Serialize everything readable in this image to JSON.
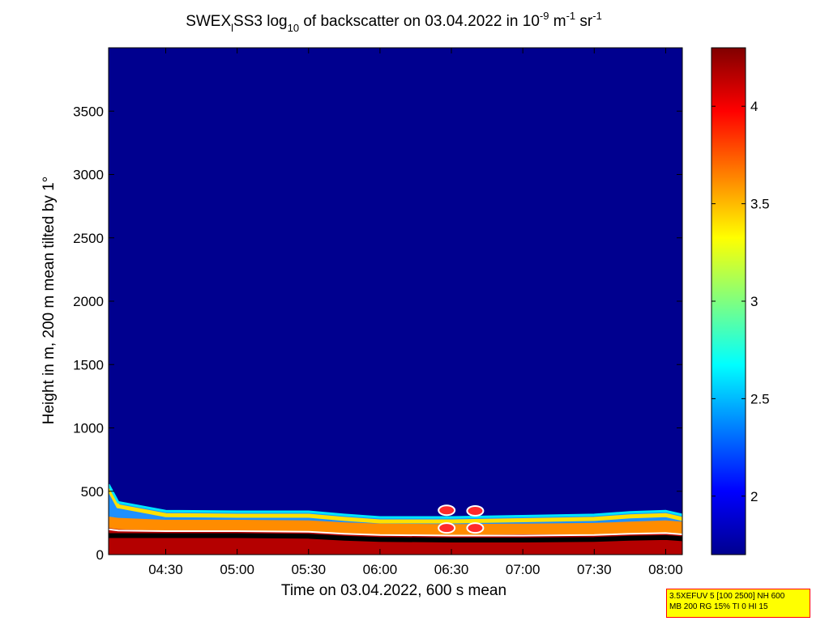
{
  "chart_data": {
    "type": "heatmap",
    "title": {
      "part1": "SWEX",
      "sub1": "l",
      "part2": "SS3 log",
      "sub2": "10",
      "part3": " of backscatter on 03.04.2022 in 10",
      "sup1": "-9",
      "part4": " m",
      "sup2": "-1",
      "part5": " sr",
      "sup3": "-1"
    },
    "xlabel": "Time on 03.04.2022, 600 s mean",
    "ylabel": "Height in m, 200 m mean tilted by 1°",
    "xlim": [
      "04:06",
      "08:07"
    ],
    "xticks": [
      "04:30",
      "05:00",
      "05:30",
      "06:00",
      "06:30",
      "07:00",
      "07:30",
      "08:00"
    ],
    "ylim": [
      0,
      4000
    ],
    "yticks": [
      0,
      500,
      1000,
      1500,
      2000,
      2500,
      3000,
      3500
    ],
    "colorbar": {
      "colormap": "jet",
      "range": [
        1.7,
        4.3
      ],
      "ticks": [
        2,
        2.5,
        3,
        3.5,
        4
      ]
    },
    "background_level": 1.7,
    "layers": {
      "time": [
        "04:06",
        "04:10",
        "04:30",
        "05:00",
        "05:30",
        "05:45",
        "06:00",
        "06:30",
        "07:00",
        "07:30",
        "07:45",
        "08:00",
        "08:07"
      ],
      "signal_top_m": [
        560,
        420,
        350,
        345,
        345,
        320,
        300,
        300,
        310,
        320,
        340,
        350,
        320
      ],
      "high_signal_top_m": [
        300,
        290,
        275,
        275,
        270,
        255,
        245,
        240,
        245,
        250,
        260,
        270,
        260
      ],
      "saturated_top_m": [
        210,
        200,
        190,
        190,
        185,
        170,
        160,
        155,
        160,
        160,
        170,
        175,
        165
      ],
      "white_contour_m": [
        200,
        190,
        185,
        185,
        180,
        165,
        155,
        150,
        150,
        155,
        165,
        170,
        160
      ],
      "black_band_m": [
        150,
        150,
        150,
        150,
        145,
        130,
        120,
        115,
        115,
        120,
        130,
        135,
        125
      ]
    },
    "cloud_marks": [
      {
        "time": "06:28",
        "height_m": 350
      },
      {
        "time": "06:28",
        "height_m": 210
      },
      {
        "time": "06:40",
        "height_m": 345
      },
      {
        "time": "06:40",
        "height_m": 210
      }
    ]
  },
  "info_box": {
    "line1": "3.5XEFUV 5 [100 2500] NH 600",
    "line2": "MB 200 RG 15% TI 0 HI 15"
  }
}
